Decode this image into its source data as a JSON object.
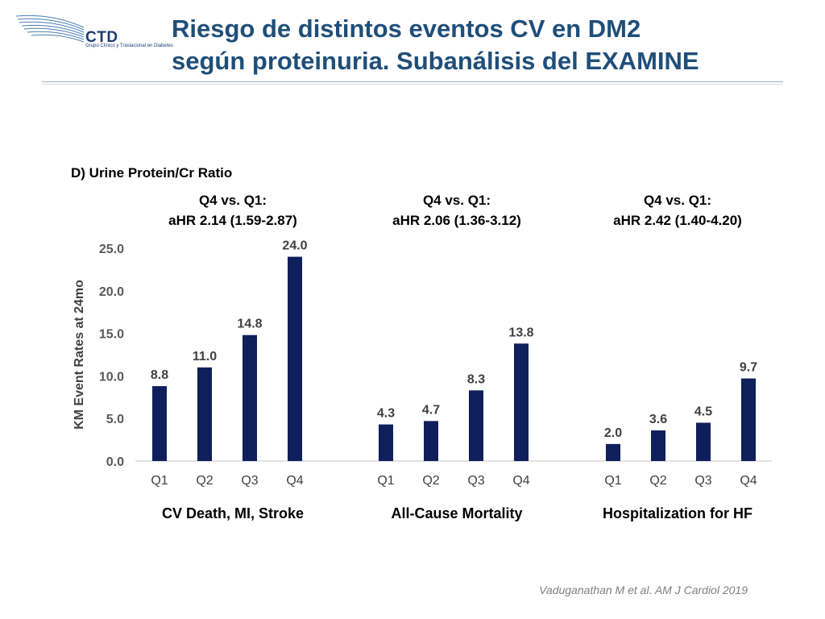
{
  "logo": {
    "brand": "CTD",
    "subtitle": "Grupo Clínico y Traslacional en Diabetes"
  },
  "slide": {
    "title_line1": "Riesgo de distintos eventos CV en DM2",
    "title_line2": "según proteinuria. Subanálisis del EXAMINE",
    "citation": "Vaduganathan M et al. AM J Cardiol 2019"
  },
  "colors": {
    "bar": "#0f1f5c",
    "title": "#1f4e79"
  },
  "chart_data": {
    "type": "bar",
    "title": "D) Urine Protein/Cr Ratio",
    "ylabel": "KM Event Rates at 24mo",
    "ylim": [
      0,
      25
    ],
    "yticks": [
      "0.0",
      "5.0",
      "10.0",
      "15.0",
      "20.0",
      "25.0"
    ],
    "groups": [
      {
        "name": "CV Death, MI, Stroke",
        "hr_line1": "Q4 vs. Q1:",
        "hr_line2": "aHR 2.14 (1.59-2.87)",
        "categories": [
          "Q1",
          "Q2",
          "Q3",
          "Q4"
        ],
        "values": [
          8.8,
          11.0,
          14.8,
          24.0
        ],
        "labels": [
          "8.8",
          "11.0",
          "14.8",
          "24.0"
        ]
      },
      {
        "name": "All-Cause Mortality",
        "hr_line1": "Q4 vs. Q1:",
        "hr_line2": "aHR 2.06 (1.36-3.12)",
        "categories": [
          "Q1",
          "Q2",
          "Q3",
          "Q4"
        ],
        "values": [
          4.3,
          4.7,
          8.3,
          13.8
        ],
        "labels": [
          "4.3",
          "4.7",
          "8.3",
          "13.8"
        ]
      },
      {
        "name": "Hospitalization for HF",
        "hr_line1": "Q4 vs. Q1:",
        "hr_line2": "aHR 2.42 (1.40-4.20)",
        "categories": [
          "Q1",
          "Q2",
          "Q3",
          "Q4"
        ],
        "values": [
          2.0,
          3.6,
          4.5,
          9.7
        ],
        "labels": [
          "2.0",
          "3.6",
          "4.5",
          "9.7"
        ]
      }
    ]
  }
}
